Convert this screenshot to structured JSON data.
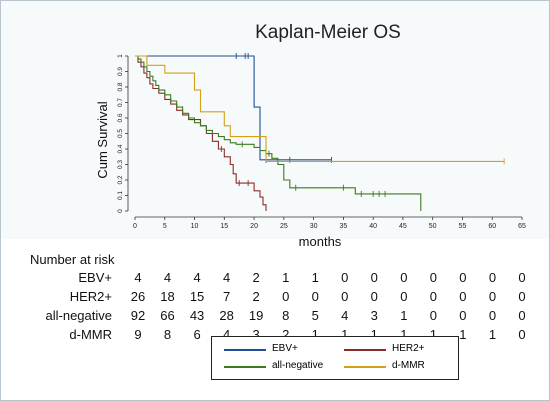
{
  "chart_data": {
    "type": "line",
    "title": "Kaplan-Meier OS",
    "xlabel": "months",
    "ylabel": "Cum Survival",
    "xlim": [
      0,
      65
    ],
    "ylim": [
      0,
      1
    ],
    "xticks": [
      0,
      5,
      10,
      15,
      20,
      25,
      30,
      35,
      40,
      45,
      50,
      55,
      60,
      65
    ],
    "yticks": [
      0,
      0.1,
      0.2,
      0.3,
      0.4,
      0.5,
      0.6,
      0.7,
      0.8,
      0.9,
      1
    ],
    "ytick_labels": [
      "0",
      "0.1",
      "0.2",
      "0.3",
      "0.4",
      "0.5",
      "0.6",
      "0.7",
      "0.8",
      "0.9",
      "1"
    ],
    "series": [
      {
        "name": "EBV+",
        "color": "#1f4e96",
        "steps": [
          [
            0,
            1
          ],
          [
            20,
            1
          ],
          [
            20,
            0.67
          ],
          [
            21,
            0.67
          ],
          [
            21,
            0.33
          ],
          [
            33,
            0.33
          ]
        ],
        "censored": [
          [
            17,
            1
          ],
          [
            18.5,
            1
          ],
          [
            19,
            1
          ],
          [
            22,
            0.33
          ],
          [
            26,
            0.33
          ],
          [
            33,
            0.33
          ]
        ]
      },
      {
        "name": "HER2+",
        "color": "#8b2a2a",
        "steps": [
          [
            0,
            1
          ],
          [
            0.5,
            0.96
          ],
          [
            1,
            0.93
          ],
          [
            1.5,
            0.89
          ],
          [
            2,
            0.86
          ],
          [
            2.5,
            0.82
          ],
          [
            3,
            0.79
          ],
          [
            4,
            0.76
          ],
          [
            5,
            0.72
          ],
          [
            6,
            0.69
          ],
          [
            7,
            0.65
          ],
          [
            8,
            0.62
          ],
          [
            9,
            0.59
          ],
          [
            11,
            0.55
          ],
          [
            12,
            0.5
          ],
          [
            13,
            0.45
          ],
          [
            14,
            0.4
          ],
          [
            15,
            0.35
          ],
          [
            16,
            0.3
          ],
          [
            16.5,
            0.24
          ],
          [
            17,
            0.18
          ],
          [
            20,
            0.18
          ],
          [
            20,
            0.13
          ],
          [
            21,
            0.09
          ],
          [
            21.5,
            0.04
          ],
          [
            22,
            0.0
          ]
        ],
        "censored": [
          [
            14.5,
            0.4
          ],
          [
            17.5,
            0.18
          ],
          [
            19,
            0.18
          ]
        ]
      },
      {
        "name": "all-negative",
        "color": "#3c7a1e",
        "steps": [
          [
            0,
            1
          ],
          [
            0.5,
            0.98
          ],
          [
            1,
            0.96
          ],
          [
            1.5,
            0.93
          ],
          [
            2,
            0.9
          ],
          [
            2.5,
            0.87
          ],
          [
            3,
            0.84
          ],
          [
            3.5,
            0.81
          ],
          [
            4,
            0.78
          ],
          [
            5,
            0.75
          ],
          [
            6,
            0.71
          ],
          [
            7,
            0.67
          ],
          [
            8,
            0.63
          ],
          [
            9,
            0.6
          ],
          [
            10,
            0.57
          ],
          [
            11,
            0.55
          ],
          [
            12,
            0.52
          ],
          [
            13,
            0.5
          ],
          [
            14,
            0.48
          ],
          [
            15,
            0.46
          ],
          [
            16,
            0.44
          ],
          [
            17,
            0.43
          ],
          [
            19,
            0.43
          ],
          [
            20,
            0.41
          ],
          [
            21,
            0.39
          ],
          [
            22,
            0.37
          ],
          [
            23,
            0.34
          ],
          [
            24,
            0.3
          ],
          [
            25,
            0.2
          ],
          [
            26,
            0.15
          ],
          [
            37,
            0.15
          ],
          [
            37,
            0.11
          ],
          [
            48,
            0.11
          ],
          [
            48,
            0.0
          ]
        ],
        "censored": [
          [
            18,
            0.43
          ],
          [
            22.5,
            0.37
          ],
          [
            27,
            0.15
          ],
          [
            35,
            0.15
          ],
          [
            38,
            0.11
          ],
          [
            40,
            0.11
          ],
          [
            41,
            0.11
          ],
          [
            42,
            0.11
          ]
        ]
      },
      {
        "name": "d-MMR",
        "color": "#d4a017",
        "steps": [
          [
            0,
            1
          ],
          [
            2,
            1
          ],
          [
            2,
            0.94
          ],
          [
            5,
            0.94
          ],
          [
            5,
            0.89
          ],
          [
            10,
            0.89
          ],
          [
            10,
            0.78
          ],
          [
            11,
            0.78
          ],
          [
            11,
            0.64
          ],
          [
            15,
            0.64
          ],
          [
            15,
            0.55
          ],
          [
            16,
            0.55
          ],
          [
            16,
            0.48
          ],
          [
            22,
            0.48
          ],
          [
            22,
            0.32
          ],
          [
            62,
            0.32
          ]
        ],
        "censored": [
          [
            62,
            0.32
          ]
        ]
      }
    ],
    "risk_table": {
      "header": "Number at risk",
      "times": [
        0,
        5,
        10,
        15,
        20,
        25,
        30,
        35,
        40,
        45,
        50,
        55,
        60,
        65
      ],
      "rows": [
        {
          "label": "EBV+",
          "values": [
            "4",
            "4",
            "4",
            "4",
            "2",
            "1",
            "1",
            "0",
            "0",
            "0",
            "0",
            "0",
            "0",
            "0"
          ]
        },
        {
          "label": "HER2+",
          "values": [
            "26",
            "18",
            "15",
            "7",
            "2",
            "0",
            "0",
            "0",
            "0",
            "0",
            "0",
            "0",
            "0",
            "0"
          ]
        },
        {
          "label": "all-negative",
          "values": [
            "92",
            "66",
            "43",
            "28",
            "19",
            "8",
            "5",
            "4",
            "3",
            "1",
            "0",
            "0",
            "0",
            "0"
          ]
        },
        {
          "label": "d-MMR",
          "values": [
            "9",
            "8",
            "6",
            "4",
            "3",
            "2",
            "1",
            "1",
            "1",
            "1",
            "1",
            "1",
            "1",
            "0"
          ]
        }
      ]
    },
    "legend": {
      "position": "bottom",
      "items": [
        {
          "label": "EBV+",
          "color": "#1f4e96"
        },
        {
          "label": "HER2+",
          "color": "#8b2a2a"
        },
        {
          "label": "all-negative",
          "color": "#3c7a1e"
        },
        {
          "label": "d-MMR",
          "color": "#d4a017"
        }
      ]
    }
  }
}
